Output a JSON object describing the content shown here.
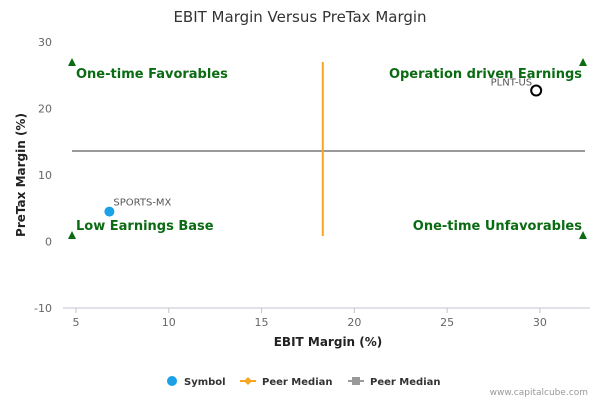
{
  "chart_data": {
    "type": "scatter",
    "title": "EBIT Margin Versus PreTax Margin",
    "xlabel": "EBIT Margin (%)",
    "ylabel": "PreTax Margin (%)",
    "xlim": [
      4.3,
      32.7
    ],
    "ylim": [
      -10,
      30
    ],
    "x_ticks": [
      5,
      10,
      15,
      20,
      25,
      30
    ],
    "y_ticks": [
      -10,
      0,
      10,
      20,
      30
    ],
    "points": [
      {
        "label": "SPORTS-MX",
        "x": 6.8,
        "y": 4.5,
        "color": "#1aa1e8",
        "style": "filled"
      },
      {
        "label": "PLNT-US",
        "x": 29.8,
        "y": 22.7,
        "color": "#000000",
        "style": "hollow"
      }
    ],
    "peer_median_x": 18.3,
    "peer_median_y": 13.6,
    "quadrant_labels": {
      "top_left": "One-time Favorables",
      "top_right": "Operation driven Earnings",
      "bottom_left": "Low Earnings Base",
      "bottom_right": "One-time Unfavorables"
    },
    "legend": [
      {
        "label": "Symbol",
        "marker": "circle",
        "color": "#1aa1e8"
      },
      {
        "label": "Peer Median",
        "marker": "diamond-line",
        "color": "#f5a623"
      },
      {
        "label": "Peer Median",
        "marker": "square-line",
        "color": "#999999"
      }
    ],
    "legend_position": "bottom",
    "grid": false
  },
  "colors": {
    "median_x_line": "#f5a623",
    "median_y_line": "#999999",
    "quadrant_text": "#0a6b12",
    "triangle": "#0a6b12"
  },
  "credit": "www.capitalcube.com"
}
